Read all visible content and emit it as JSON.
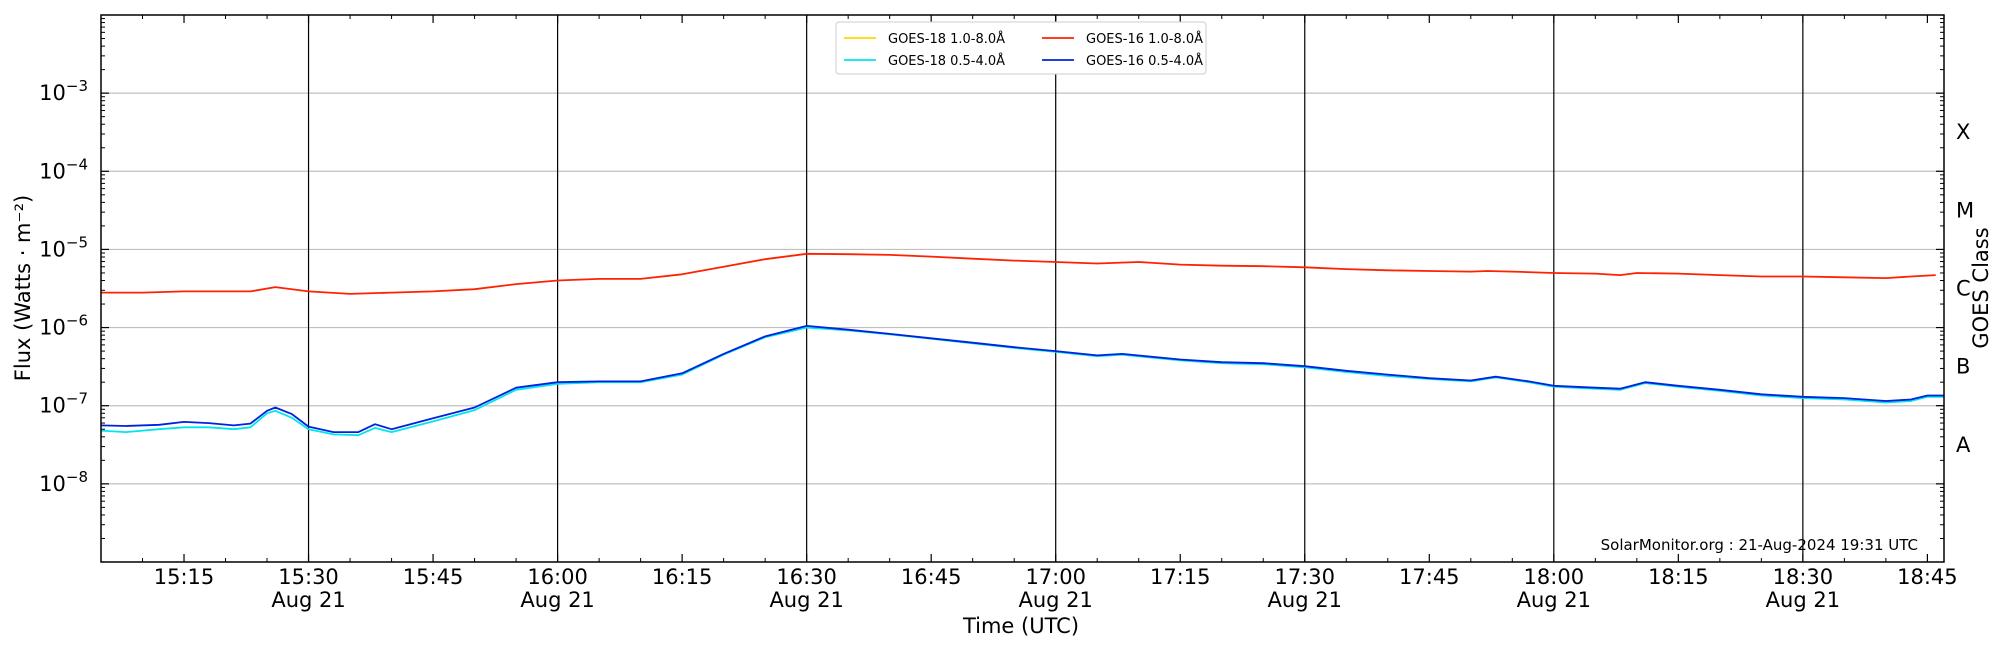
{
  "chart_data": {
    "type": "line",
    "xlabel": "Time (UTC)",
    "ylabel": "Flux (Watts · m⁻²)",
    "ylabel_right": "GOES Class",
    "credit": "SolarMonitor.org : 21-Aug-2024 19:31 UTC",
    "y_scale": "log",
    "ylim": [
      1e-09,
      0.01
    ],
    "xlim": [
      "15:05",
      "18:47"
    ],
    "grid": "horizontal at decades, vertical lines every 30 min",
    "legend_position": "top-center",
    "x_ticks": [
      {
        "t": "15:15",
        "label": "15:15",
        "sub": ""
      },
      {
        "t": "15:30",
        "label": "15:30",
        "sub": "Aug 21"
      },
      {
        "t": "15:45",
        "label": "15:45",
        "sub": ""
      },
      {
        "t": "16:00",
        "label": "16:00",
        "sub": "Aug 21"
      },
      {
        "t": "16:15",
        "label": "16:15",
        "sub": ""
      },
      {
        "t": "16:30",
        "label": "16:30",
        "sub": "Aug 21"
      },
      {
        "t": "16:45",
        "label": "16:45",
        "sub": ""
      },
      {
        "t": "17:00",
        "label": "17:00",
        "sub": "Aug 21"
      },
      {
        "t": "17:15",
        "label": "17:15",
        "sub": ""
      },
      {
        "t": "17:30",
        "label": "17:30",
        "sub": "Aug 21"
      },
      {
        "t": "17:45",
        "label": "17:45",
        "sub": ""
      },
      {
        "t": "18:00",
        "label": "18:00",
        "sub": "Aug 21"
      },
      {
        "t": "18:15",
        "label": "18:15",
        "sub": ""
      },
      {
        "t": "18:30",
        "label": "18:30",
        "sub": "Aug 21"
      },
      {
        "t": "18:45",
        "label": "18:45",
        "sub": ""
      }
    ],
    "y_ticks": [
      {
        "exp": -8,
        "base": "10",
        "sup": "−8"
      },
      {
        "exp": -7,
        "base": "10",
        "sup": "−7"
      },
      {
        "exp": -6,
        "base": "10",
        "sup": "−6"
      },
      {
        "exp": -5,
        "base": "10",
        "sup": "−5"
      },
      {
        "exp": -4,
        "base": "10",
        "sup": "−4"
      },
      {
        "exp": -3,
        "base": "10",
        "sup": "−3"
      }
    ],
    "goes_classes": [
      {
        "label": "A",
        "center_exp": -7.5
      },
      {
        "label": "B",
        "center_exp": -6.5
      },
      {
        "label": "C",
        "center_exp": -5.5
      },
      {
        "label": "M",
        "center_exp": -4.5
      },
      {
        "label": "X",
        "center_exp": -3.5
      }
    ],
    "series": [
      {
        "name": "GOES-18 1.0-8.0Å",
        "color": "#ffd700",
        "points": []
      },
      {
        "name": "GOES-16 1.0-8.0Å",
        "color": "#ff2200",
        "points": [
          [
            "15:05",
            2.8e-06
          ],
          [
            "15:10",
            2.8e-06
          ],
          [
            "15:15",
            2.9e-06
          ],
          [
            "15:20",
            2.9e-06
          ],
          [
            "15:23",
            2.9e-06
          ],
          [
            "15:26",
            3.3e-06
          ],
          [
            "15:30",
            2.9e-06
          ],
          [
            "15:35",
            2.7e-06
          ],
          [
            "15:40",
            2.8e-06
          ],
          [
            "15:45",
            2.9e-06
          ],
          [
            "15:50",
            3.1e-06
          ],
          [
            "15:55",
            3.6e-06
          ],
          [
            "16:00",
            4e-06
          ],
          [
            "16:05",
            4.2e-06
          ],
          [
            "16:10",
            4.2e-06
          ],
          [
            "16:15",
            4.8e-06
          ],
          [
            "16:20",
            6e-06
          ],
          [
            "16:25",
            7.5e-06
          ],
          [
            "16:30",
            8.8e-06
          ],
          [
            "16:35",
            8.7e-06
          ],
          [
            "16:40",
            8.5e-06
          ],
          [
            "16:45",
            8.1e-06
          ],
          [
            "16:50",
            7.6e-06
          ],
          [
            "16:55",
            7.2e-06
          ],
          [
            "17:00",
            6.9e-06
          ],
          [
            "17:05",
            6.6e-06
          ],
          [
            "17:10",
            6.9e-06
          ],
          [
            "17:15",
            6.4e-06
          ],
          [
            "17:20",
            6.2e-06
          ],
          [
            "17:25",
            6.1e-06
          ],
          [
            "17:30",
            5.9e-06
          ],
          [
            "17:35",
            5.6e-06
          ],
          [
            "17:40",
            5.4e-06
          ],
          [
            "17:45",
            5.3e-06
          ],
          [
            "17:50",
            5.2e-06
          ],
          [
            "17:52",
            5.3e-06
          ],
          [
            "17:55",
            5.2e-06
          ],
          [
            "18:00",
            5e-06
          ],
          [
            "18:05",
            4.9e-06
          ],
          [
            "18:08",
            4.7e-06
          ],
          [
            "18:10",
            5e-06
          ],
          [
            "18:15",
            4.9e-06
          ],
          [
            "18:20",
            4.7e-06
          ],
          [
            "18:25",
            4.5e-06
          ],
          [
            "18:30",
            4.5e-06
          ],
          [
            "18:35",
            4.4e-06
          ],
          [
            "18:40",
            4.3e-06
          ],
          [
            "18:43",
            4.5e-06
          ],
          [
            "18:46",
            4.7e-06
          ]
        ]
      },
      {
        "name": "GOES-18 0.5-4.0Å",
        "color": "#00e5ee",
        "points": [
          [
            "15:05",
            4.8e-08
          ],
          [
            "15:08",
            4.6e-08
          ],
          [
            "15:12",
            5e-08
          ],
          [
            "15:15",
            5.3e-08
          ],
          [
            "15:18",
            5.3e-08
          ],
          [
            "15:21",
            5e-08
          ],
          [
            "15:23",
            5.3e-08
          ],
          [
            "15:25",
            8e-08
          ],
          [
            "15:26",
            8.6e-08
          ],
          [
            "15:28",
            7e-08
          ],
          [
            "15:30",
            5e-08
          ],
          [
            "15:33",
            4.3e-08
          ],
          [
            "15:36",
            4.2e-08
          ],
          [
            "15:38",
            5.2e-08
          ],
          [
            "15:40",
            4.6e-08
          ],
          [
            "15:45",
            6.3e-08
          ],
          [
            "15:50",
            8.8e-08
          ],
          [
            "15:55",
            1.6e-07
          ],
          [
            "16:00",
            1.9e-07
          ],
          [
            "16:05",
            2e-07
          ],
          [
            "16:10",
            2e-07
          ],
          [
            "16:15",
            2.5e-07
          ],
          [
            "16:20",
            4.5e-07
          ],
          [
            "16:25",
            7.5e-07
          ],
          [
            "16:30",
            1e-06
          ],
          [
            "16:35",
            9.2e-07
          ],
          [
            "16:40",
            8.2e-07
          ],
          [
            "16:45",
            7.2e-07
          ],
          [
            "16:50",
            6.3e-07
          ],
          [
            "16:55",
            5.5e-07
          ],
          [
            "17:00",
            4.9e-07
          ],
          [
            "17:05",
            4.3e-07
          ],
          [
            "17:08",
            4.5e-07
          ],
          [
            "17:15",
            3.8e-07
          ],
          [
            "17:20",
            3.5e-07
          ],
          [
            "17:25",
            3.4e-07
          ],
          [
            "17:30",
            3.1e-07
          ],
          [
            "17:35",
            2.7e-07
          ],
          [
            "17:40",
            2.4e-07
          ],
          [
            "17:45",
            2.2e-07
          ],
          [
            "17:50",
            2.05e-07
          ],
          [
            "17:53",
            2.3e-07
          ],
          [
            "17:57",
            2e-07
          ],
          [
            "18:00",
            1.75e-07
          ],
          [
            "18:05",
            1.65e-07
          ],
          [
            "18:08",
            1.6e-07
          ],
          [
            "18:11",
            1.95e-07
          ],
          [
            "18:15",
            1.75e-07
          ],
          [
            "18:20",
            1.55e-07
          ],
          [
            "18:25",
            1.35e-07
          ],
          [
            "18:30",
            1.25e-07
          ],
          [
            "18:35",
            1.2e-07
          ],
          [
            "18:40",
            1.1e-07
          ],
          [
            "18:43",
            1.15e-07
          ],
          [
            "18:45",
            1.3e-07
          ],
          [
            "18:47",
            1.3e-07
          ]
        ]
      },
      {
        "name": "GOES-16 0.5-4.0Å",
        "color": "#0022dd",
        "points": [
          [
            "15:05",
            5.6e-08
          ],
          [
            "15:08",
            5.5e-08
          ],
          [
            "15:12",
            5.7e-08
          ],
          [
            "15:15",
            6.2e-08
          ],
          [
            "15:18",
            6e-08
          ],
          [
            "15:21",
            5.6e-08
          ],
          [
            "15:23",
            5.9e-08
          ],
          [
            "15:25",
            8.6e-08
          ],
          [
            "15:26",
            9.5e-08
          ],
          [
            "15:28",
            7.8e-08
          ],
          [
            "15:30",
            5.4e-08
          ],
          [
            "15:33",
            4.6e-08
          ],
          [
            "15:36",
            4.6e-08
          ],
          [
            "15:38",
            5.8e-08
          ],
          [
            "15:40",
            5e-08
          ],
          [
            "15:45",
            6.9e-08
          ],
          [
            "15:50",
            9.5e-08
          ],
          [
            "15:55",
            1.7e-07
          ],
          [
            "16:00",
            2e-07
          ],
          [
            "16:05",
            2.05e-07
          ],
          [
            "16:10",
            2.05e-07
          ],
          [
            "16:15",
            2.6e-07
          ],
          [
            "16:20",
            4.6e-07
          ],
          [
            "16:25",
            7.7e-07
          ],
          [
            "16:30",
            1.05e-06
          ],
          [
            "16:35",
            9.4e-07
          ],
          [
            "16:40",
            8.3e-07
          ],
          [
            "16:45",
            7.3e-07
          ],
          [
            "16:50",
            6.4e-07
          ],
          [
            "16:55",
            5.6e-07
          ],
          [
            "17:00",
            5e-07
          ],
          [
            "17:05",
            4.4e-07
          ],
          [
            "17:08",
            4.6e-07
          ],
          [
            "17:15",
            3.9e-07
          ],
          [
            "17:20",
            3.6e-07
          ],
          [
            "17:25",
            3.5e-07
          ],
          [
            "17:30",
            3.2e-07
          ],
          [
            "17:35",
            2.8e-07
          ],
          [
            "17:40",
            2.5e-07
          ],
          [
            "17:45",
            2.25e-07
          ],
          [
            "17:50",
            2.1e-07
          ],
          [
            "17:53",
            2.35e-07
          ],
          [
            "17:57",
            2.05e-07
          ],
          [
            "18:00",
            1.8e-07
          ],
          [
            "18:05",
            1.7e-07
          ],
          [
            "18:08",
            1.65e-07
          ],
          [
            "18:11",
            2e-07
          ],
          [
            "18:15",
            1.8e-07
          ],
          [
            "18:20",
            1.6e-07
          ],
          [
            "18:25",
            1.4e-07
          ],
          [
            "18:30",
            1.3e-07
          ],
          [
            "18:35",
            1.25e-07
          ],
          [
            "18:40",
            1.15e-07
          ],
          [
            "18:43",
            1.2e-07
          ],
          [
            "18:45",
            1.35e-07
          ],
          [
            "18:47",
            1.35e-07
          ]
        ]
      }
    ],
    "legend_order": [
      0,
      2,
      1,
      3
    ]
  }
}
